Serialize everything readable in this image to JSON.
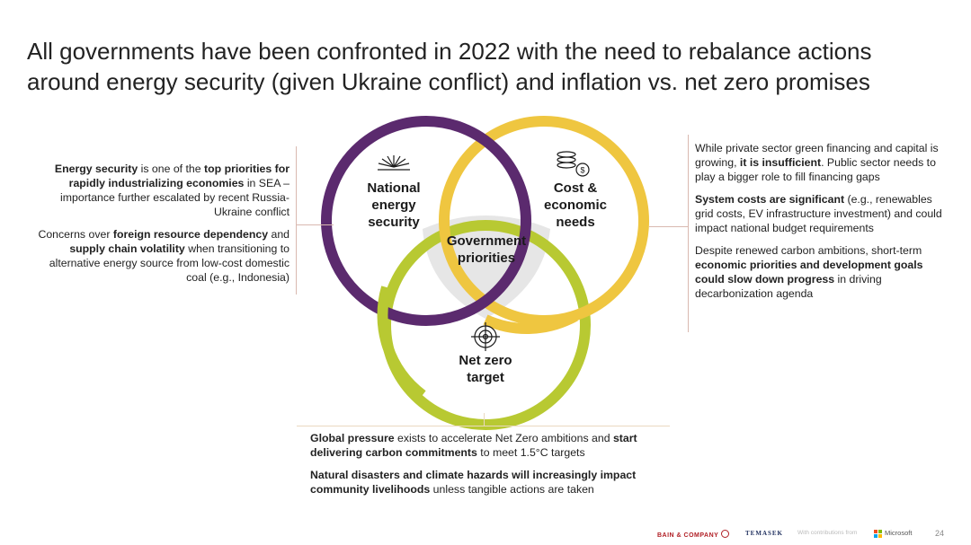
{
  "title": {
    "line1": "All governments have been confronted in 2022 with the need to rebalance actions",
    "line2": "around energy security (given Ukraine conflict) and inflation vs. net zero promises"
  },
  "colors": {
    "energy": "#5b2a6e",
    "cost": "#efc640",
    "netzero": "#b8c932",
    "center": "#e6e6e6"
  },
  "diagram": {
    "energy_label": [
      "National",
      "energy",
      "security"
    ],
    "energy_icon": "sunburst-icon",
    "cost_label": [
      "Cost &",
      "economic",
      "needs"
    ],
    "cost_icon": "coins-icon",
    "netzero_label": [
      "Net zero",
      "target"
    ],
    "netzero_icon": "target-icon",
    "center_label": [
      "Government",
      "priorities"
    ]
  },
  "left": {
    "p1": {
      "b1": "Energy security",
      "t1": " is one of the ",
      "b2": "top priorities for rapidly industrializing economies",
      "t2": " in SEA – importance further escalated by recent Russia-Ukraine conflict"
    },
    "p2": {
      "t1": "Concerns over ",
      "b1": "foreign resource dependency",
      "t2": " and ",
      "b2": "supply chain volatility",
      "t3": " when transitioning to alternative energy source from low-cost domestic coal (e.g., Indonesia)"
    }
  },
  "right": {
    "p1": {
      "t1": "While private sector green financing and capital is growing, ",
      "b1": "it is insufficient",
      "t2": ". Public sector needs to play a bigger role to fill financing gaps"
    },
    "p2": {
      "b1": "System costs are significant",
      "t1": " (e.g., renewables grid costs, EV infrastructure investment) and could impact national budget requirements"
    },
    "p3": {
      "t1": "Despite renewed carbon ambitions, short-term ",
      "b1": "economic priorities and development goals could slow down progress",
      "t2": " in driving decarbonization agenda"
    }
  },
  "bottom": {
    "p1": {
      "b1": "Global pressure",
      "t1": " exists to accelerate Net Zero ambitions and ",
      "b2": "start delivering carbon commitments",
      "t2": " to meet 1.5°C targets"
    },
    "p2": {
      "b1": "Natural disasters and climate hazards will increasingly impact community livelihoods",
      "t1": " unless tangible actions are taken"
    }
  },
  "footer": {
    "bain": "BAIN & COMPANY",
    "temasek": "TEMASEK",
    "with": "With contributions from",
    "microsoft": "Microsoft",
    "page": "24"
  }
}
